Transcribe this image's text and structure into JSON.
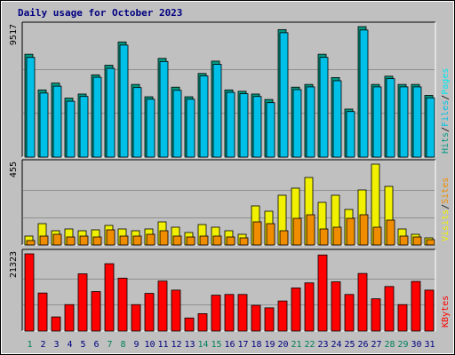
{
  "chart_data": {
    "type": "bar",
    "title": "Daily usage for October 2023",
    "categories": [
      "1",
      "2",
      "3",
      "4",
      "5",
      "6",
      "7",
      "8",
      "9",
      "10",
      "11",
      "12",
      "13",
      "14",
      "15",
      "16",
      "17",
      "18",
      "19",
      "20",
      "21",
      "22",
      "23",
      "24",
      "25",
      "26",
      "27",
      "28",
      "29",
      "30",
      "31"
    ],
    "weekend_days": [
      "1",
      "7",
      "8",
      "14",
      "15",
      "21",
      "22",
      "28",
      "29"
    ],
    "colors": {
      "hits": "#009880",
      "files": "#00c0e8",
      "pages": "#00e8f0",
      "visits": "#f0f000",
      "sites": "#f08c00",
      "kbytes": "#ff0000",
      "weekday_label": "#000080",
      "weekend_label": "#00805c",
      "background": "#c0c0c0",
      "plot_bg": "#c0c0c0",
      "grid": "#909090"
    },
    "panels": [
      {
        "id": "hits-panel",
        "max_label": "9517",
        "ymax": 9517,
        "side_labels": [
          {
            "text": "Hits",
            "color": "#009880"
          },
          {
            "text": "/",
            "color": "#000000"
          },
          {
            "text": "Files",
            "color": "#00c0e8"
          },
          {
            "text": "/",
            "color": "#000000"
          },
          {
            "text": "Pages",
            "color": "#00e8f0"
          }
        ],
        "series": [
          {
            "key": "hits",
            "values": [
              7500,
              4900,
              5400,
              4300,
              4600,
              6000,
              6700,
              8400,
              5300,
              4400,
              7200,
              5100,
              4400,
              6100,
              7000,
              4900,
              4800,
              4600,
              4200,
              9300,
              5100,
              5300,
              7500,
              5800,
              3500,
              9517,
              5300,
              5900,
              5300,
              5300,
              4500
            ]
          },
          {
            "key": "files",
            "values": [
              7400,
              4800,
              5300,
              4200,
              4550,
              5950,
              6600,
              8300,
              5200,
              4350,
              7100,
              5000,
              4350,
              6050,
              6900,
              4850,
              4750,
              4550,
              4100,
              9200,
              5050,
              5250,
              7400,
              5700,
              3450,
              9400,
              5250,
              5850,
              5250,
              5250,
              4450
            ]
          }
        ]
      },
      {
        "id": "visits-panel",
        "max_label": "455",
        "ymax": 455,
        "side_labels": [
          {
            "text": "Visits",
            "color": "#f0f000"
          },
          {
            "text": "/",
            "color": "#000000"
          },
          {
            "text": "Sites",
            "color": "#f08c00"
          }
        ],
        "series": [
          {
            "key": "visits",
            "values": [
              50,
              120,
              80,
              90,
              80,
              85,
              110,
              90,
              80,
              90,
              130,
              100,
              70,
              115,
              100,
              80,
              60,
              220,
              190,
              280,
              320,
              380,
              240,
              280,
              200,
              310,
              455,
              330,
              90,
              60,
              40
            ]
          },
          {
            "key": "sites",
            "values": [
              35,
              60,
              70,
              55,
              60,
              55,
              95,
              60,
              60,
              70,
              90,
              60,
              55,
              60,
              60,
              55,
              50,
              140,
              130,
              90,
              160,
              180,
              100,
              110,
              160,
              180,
              110,
              150,
              60,
              55,
              40
            ]
          }
        ]
      },
      {
        "id": "kbytes-panel",
        "max_label": "21323",
        "ymax": 21323,
        "side_labels": [
          {
            "text": "KBytes",
            "color": "#ff0000"
          }
        ],
        "series": [
          {
            "key": "kbytes",
            "values": [
              21323,
              10500,
              3900,
              7300,
              15800,
              10900,
              18600,
              14600,
              7300,
              10400,
              13800,
              11300,
              3600,
              4800,
              9900,
              10100,
              10100,
              7100,
              6400,
              8300,
              11900,
              13300,
              21000,
              13600,
              10100,
              15900,
              8900,
              12300,
              7300,
              13700,
              11300
            ]
          }
        ]
      }
    ]
  }
}
